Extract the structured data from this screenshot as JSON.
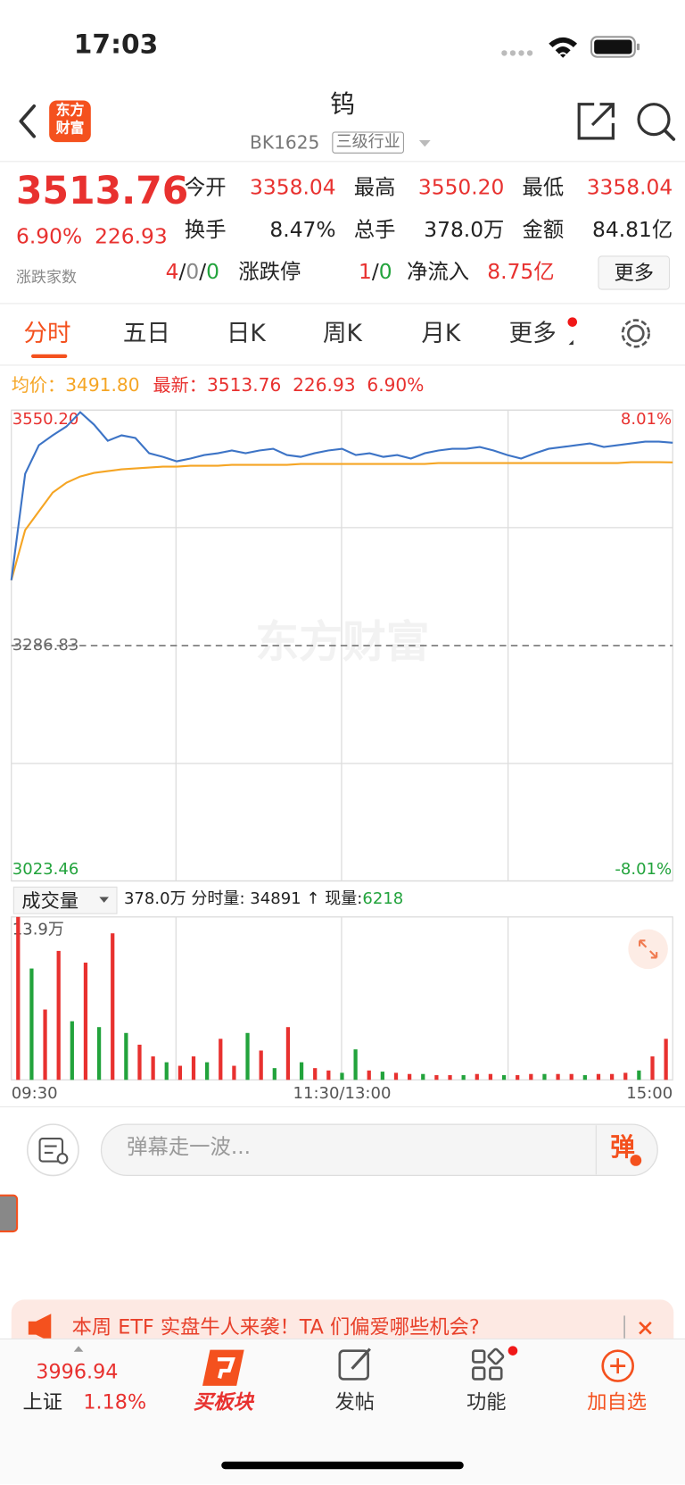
{
  "status_bar": {
    "time": "17:03"
  },
  "header": {
    "logo": [
      "东方",
      "财富"
    ],
    "title": "钨",
    "code": "BK1625",
    "tag": "三级行业"
  },
  "quote": {
    "price": "3513.76",
    "change_pct": "6.90%",
    "change": "226.93",
    "breadth_label": "涨跌家数",
    "breadth_up": "4",
    "breadth_flat": "0",
    "breadth_down": "0",
    "sep": "/",
    "stats": [
      [
        {
          "label": "今开",
          "value": "3358.04"
        },
        {
          "label": "最高",
          "value": "3550.20"
        },
        {
          "label": "最低",
          "value": "3358.04"
        }
      ],
      [
        {
          "label": "换手",
          "value": "8.47%"
        },
        {
          "label": "总手",
          "value": "378.0万"
        },
        {
          "label": "金额",
          "value": "84.81亿"
        }
      ]
    ],
    "limit_label": "涨跌停",
    "limit_up": "1",
    "limit_down": "0",
    "inflow_label": "净流入",
    "inflow": "8.75亿",
    "more": "更多"
  },
  "tabs": [
    "分时",
    "五日",
    "日K",
    "周K",
    "月K",
    "更多"
  ],
  "info": {
    "avg": "3491.80",
    "last": "3513.76",
    "change": "226.93",
    "pct": "6.90%"
  },
  "watermark": "东方财富",
  "chart_data": [
    {
      "type": "line",
      "categories": [
        "09:30",
        null,
        null,
        null,
        null,
        null,
        null,
        null,
        null,
        null,
        null,
        null,
        null,
        null,
        null,
        null,
        null,
        null,
        null,
        null,
        null,
        null,
        null,
        null,
        "11:30/13:00",
        null,
        null,
        null,
        null,
        null,
        null,
        null,
        null,
        null,
        null,
        null,
        null,
        null,
        null,
        null,
        null,
        null,
        null,
        null,
        null,
        null,
        null,
        null,
        "15:00"
      ],
      "ylim": [
        3023.46,
        3550.2
      ],
      "yticks": [
        {
          "value": 3550.2,
          "label": "3550.20"
        },
        3286.83,
        3023.46
      ],
      "y2lim": [
        -8.01,
        8.01
      ],
      "y2ticks": [
        {
          "value": 8.01,
          "label": "8.01%"
        },
        {
          "value": -8.01,
          "label": "-8.01%"
        }
      ],
      "series": [
        {
          "name": "最新：",
          "color": "#3d74c6",
          "values": [
            3360,
            3479,
            3511,
            3522,
            3532,
            3548,
            3534,
            3516,
            3522,
            3519,
            3502,
            3498,
            3493,
            3496,
            3500,
            3502,
            3505,
            3502,
            3505,
            3507,
            3500,
            3498,
            3502,
            3505,
            3507,
            3500,
            3502,
            3498,
            3500,
            3496,
            3502,
            3505,
            3507,
            3507,
            3509,
            3505,
            3500,
            3496,
            3502,
            3507,
            3509,
            3511,
            3513,
            3509,
            3511,
            3513,
            3515,
            3515,
            3513.76
          ]
        },
        {
          "name": "均价：",
          "color": "#f5a524",
          "values": [
            3360,
            3416,
            3437,
            3458,
            3469,
            3476,
            3480,
            3482,
            3484,
            3485,
            3486,
            3487,
            3487,
            3488,
            3488,
            3488,
            3489,
            3489,
            3489,
            3489,
            3489,
            3490,
            3490,
            3490,
            3490,
            3490,
            3490,
            3490,
            3490,
            3490,
            3490,
            3491,
            3491,
            3491,
            3491,
            3491,
            3491,
            3491,
            3491,
            3491,
            3491,
            3491,
            3491,
            3491,
            3491,
            3492,
            3492,
            3492,
            3491.8
          ]
        }
      ]
    },
    {
      "type": "bar",
      "ylim": [
        0,
        139000
      ],
      "yticks": [
        {
          "value": 139000,
          "label": "13.9万"
        }
      ],
      "values": [
        139000,
        95000,
        60000,
        110000,
        50000,
        100000,
        45000,
        125000,
        40000,
        30000,
        20000,
        15000,
        12000,
        20000,
        15000,
        35000,
        12000,
        40000,
        25000,
        10000,
        45000,
        15000,
        10000,
        8000,
        6000,
        26000,
        8000,
        7000,
        6000,
        5000,
        5000,
        4000,
        4000,
        4000,
        5000,
        5000,
        4000,
        4000,
        5000,
        5000,
        5000,
        5000,
        4000,
        5000,
        5000,
        6000,
        8000,
        20000,
        35000
      ],
      "colors": [
        "#e8312f",
        "#22a33c",
        "#e8312f",
        "#e8312f",
        "#22a33c",
        "#e8312f",
        "#22a33c",
        "#e8312f",
        "#22a33c",
        "#e8312f",
        "#e8312f",
        "#22a33c",
        "#e8312f",
        "#e8312f",
        "#22a33c",
        "#e8312f",
        "#e8312f",
        "#22a33c",
        "#e8312f",
        "#22a33c",
        "#e8312f",
        "#22a33c",
        "#e8312f",
        "#e8312f",
        "#22a33c",
        "#22a33c",
        "#e8312f",
        "#22a33c",
        "#e8312f",
        "#e8312f",
        "#22a33c",
        "#e8312f",
        "#e8312f",
        "#22a33c",
        "#e8312f",
        "#e8312f",
        "#22a33c",
        "#e8312f",
        "#e8312f",
        "#22a33c",
        "#e8312f",
        "#e8312f",
        "#22a33c",
        "#e8312f",
        "#e8312f",
        "#e8312f",
        "#22a33c",
        "#e8312f",
        "#e8312f"
      ]
    }
  ],
  "volume_bar": {
    "selector": "成交量",
    "total": "378.0万",
    "tick_label": "分时量:",
    "tick_vol": "34891",
    "arrow": "↑",
    "now_label": "现量:",
    "now": "6218"
  },
  "comment": {
    "placeholder": "弹幕走一波...",
    "button": "弹"
  },
  "banner": {
    "text": "本周 ETF 实盘牛人来袭！TA 们偏爱哪些机会?"
  },
  "nav": {
    "index_value": "3996.94",
    "index_name": "上证",
    "index_pct": "1.18%",
    "items": [
      "买板块",
      "发帖",
      "功能",
      "加自选"
    ]
  }
}
